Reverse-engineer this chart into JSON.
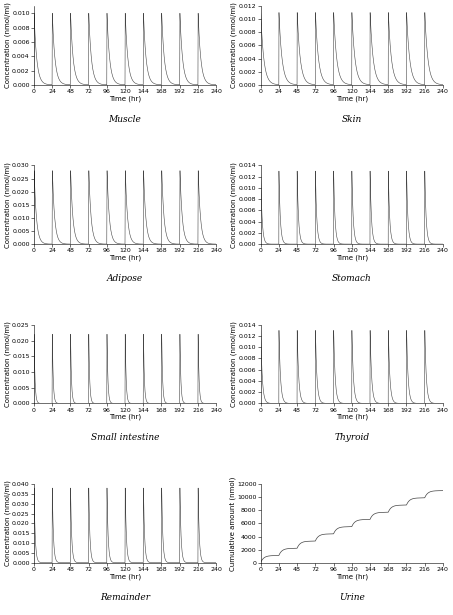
{
  "panels": [
    {
      "title": "Muscle",
      "ylim": [
        0,
        0.011
      ],
      "yticks": [
        0,
        0.002,
        0.004,
        0.006,
        0.008,
        0.01
      ],
      "peak": 0.01,
      "decay": 3.5,
      "rise": 0.3,
      "type": "conc"
    },
    {
      "title": "Skin",
      "ylim": [
        0,
        0.012
      ],
      "yticks": [
        0,
        0.002,
        0.004,
        0.006,
        0.008,
        0.01,
        0.012
      ],
      "peak": 0.011,
      "decay": 4.0,
      "rise": 0.2,
      "type": "conc"
    },
    {
      "title": "Adipose",
      "ylim": [
        0,
        0.03
      ],
      "yticks": [
        0,
        0.005,
        0.01,
        0.015,
        0.02,
        0.025,
        0.03
      ],
      "peak": 0.028,
      "decay": 3.0,
      "rise": 0.4,
      "type": "conc"
    },
    {
      "title": "Stomach",
      "ylim": [
        0,
        0.014
      ],
      "yticks": [
        0,
        0.002,
        0.004,
        0.006,
        0.008,
        0.01,
        0.012,
        0.014
      ],
      "peak": 0.013,
      "decay": 1.8,
      "rise": 0.15,
      "type": "conc"
    },
    {
      "title": "Small intestine",
      "ylim": [
        0,
        0.025
      ],
      "yticks": [
        0,
        0.005,
        0.01,
        0.015,
        0.02,
        0.025
      ],
      "peak": 0.022,
      "decay": 1.2,
      "rise": 0.3,
      "type": "conc"
    },
    {
      "title": "Thyroid",
      "ylim": [
        0,
        0.014
      ],
      "yticks": [
        0,
        0.002,
        0.004,
        0.006,
        0.008,
        0.01,
        0.012,
        0.014
      ],
      "peak": 0.013,
      "decay": 2.0,
      "rise": 0.2,
      "type": "conc"
    },
    {
      "title": "Remainder",
      "ylim": [
        0,
        0.04
      ],
      "yticks": [
        0,
        0.005,
        0.01,
        0.015,
        0.02,
        0.025,
        0.03,
        0.035,
        0.04
      ],
      "peak": 0.038,
      "decay": 1.5,
      "rise": 0.3,
      "type": "conc"
    },
    {
      "title": "Urine",
      "ylim": [
        0,
        12000
      ],
      "yticks": [
        0,
        2000,
        4000,
        6000,
        8000,
        10000,
        12000
      ],
      "peak": 11000,
      "decay": null,
      "rise": null,
      "type": "cumul"
    }
  ],
  "xticks": [
    0,
    24,
    48,
    72,
    96,
    120,
    144,
    168,
    192,
    216,
    240
  ],
  "xlim": [
    0,
    240
  ],
  "xlabel": "Time (hr)",
  "ylabel_conc": "Concentration (nmol/ml)",
  "ylabel_cumul": "Cumulative amount (nmol)",
  "dose_interval": 24,
  "n_doses": 10,
  "line_color": "#444444",
  "bg_color": "#ffffff",
  "fontsize_title": 6.5,
  "fontsize_label": 5.0,
  "fontsize_tick": 4.5
}
